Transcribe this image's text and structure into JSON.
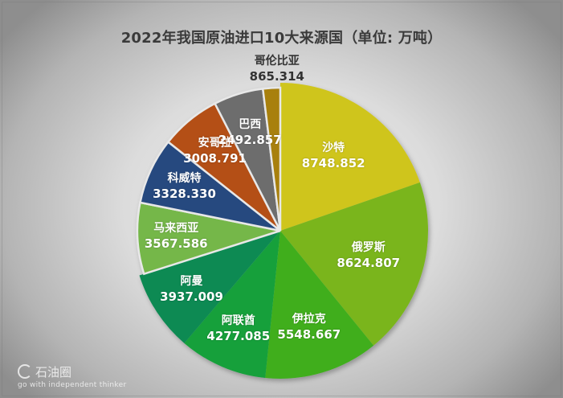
{
  "chart_data": {
    "type": "pie",
    "title": "2022年我国原油进口10大来源国（单位: 万吨）",
    "unit": "万吨",
    "start_angle_deg": 0,
    "direction": "clockwise",
    "categories": [
      "沙特",
      "俄罗斯",
      "伊拉克",
      "阿联酋",
      "阿曼",
      "马来西亚",
      "科威特",
      "安哥拉",
      "巴西",
      "哥伦比亚"
    ],
    "values": [
      8748.852,
      8624.807,
      5548.667,
      4277.085,
      3937.009,
      3567.586,
      3328.33,
      3008.791,
      2492.857,
      865.314
    ],
    "value_labels": [
      "8748.852",
      "8624.807",
      "5548.667",
      "4277.085",
      "3937.009",
      "3567.586",
      "3328.330",
      "3008.791",
      "2492.857",
      "865.314"
    ],
    "colors": [
      "#cfc51d",
      "#7ab51d",
      "#3fae1f",
      "#12a03a",
      "#0f8a52",
      "#74b748",
      "#26497f",
      "#b44f12",
      "#6d6d6d",
      "#a8800a"
    ],
    "label_colors": [
      "#ffffff",
      "#ffffff",
      "#ffffff",
      "#ffffff",
      "#ffffff",
      "#ffffff",
      "#ffffff",
      "#ffffff",
      "#ffffff",
      "#333333"
    ],
    "outlined_slices": [
      5,
      6,
      7,
      8,
      9
    ],
    "legend": "none",
    "data_labels": "category + value inside slices"
  },
  "watermark": {
    "brand": "石油圈",
    "tagline": "go with independent thinker"
  }
}
